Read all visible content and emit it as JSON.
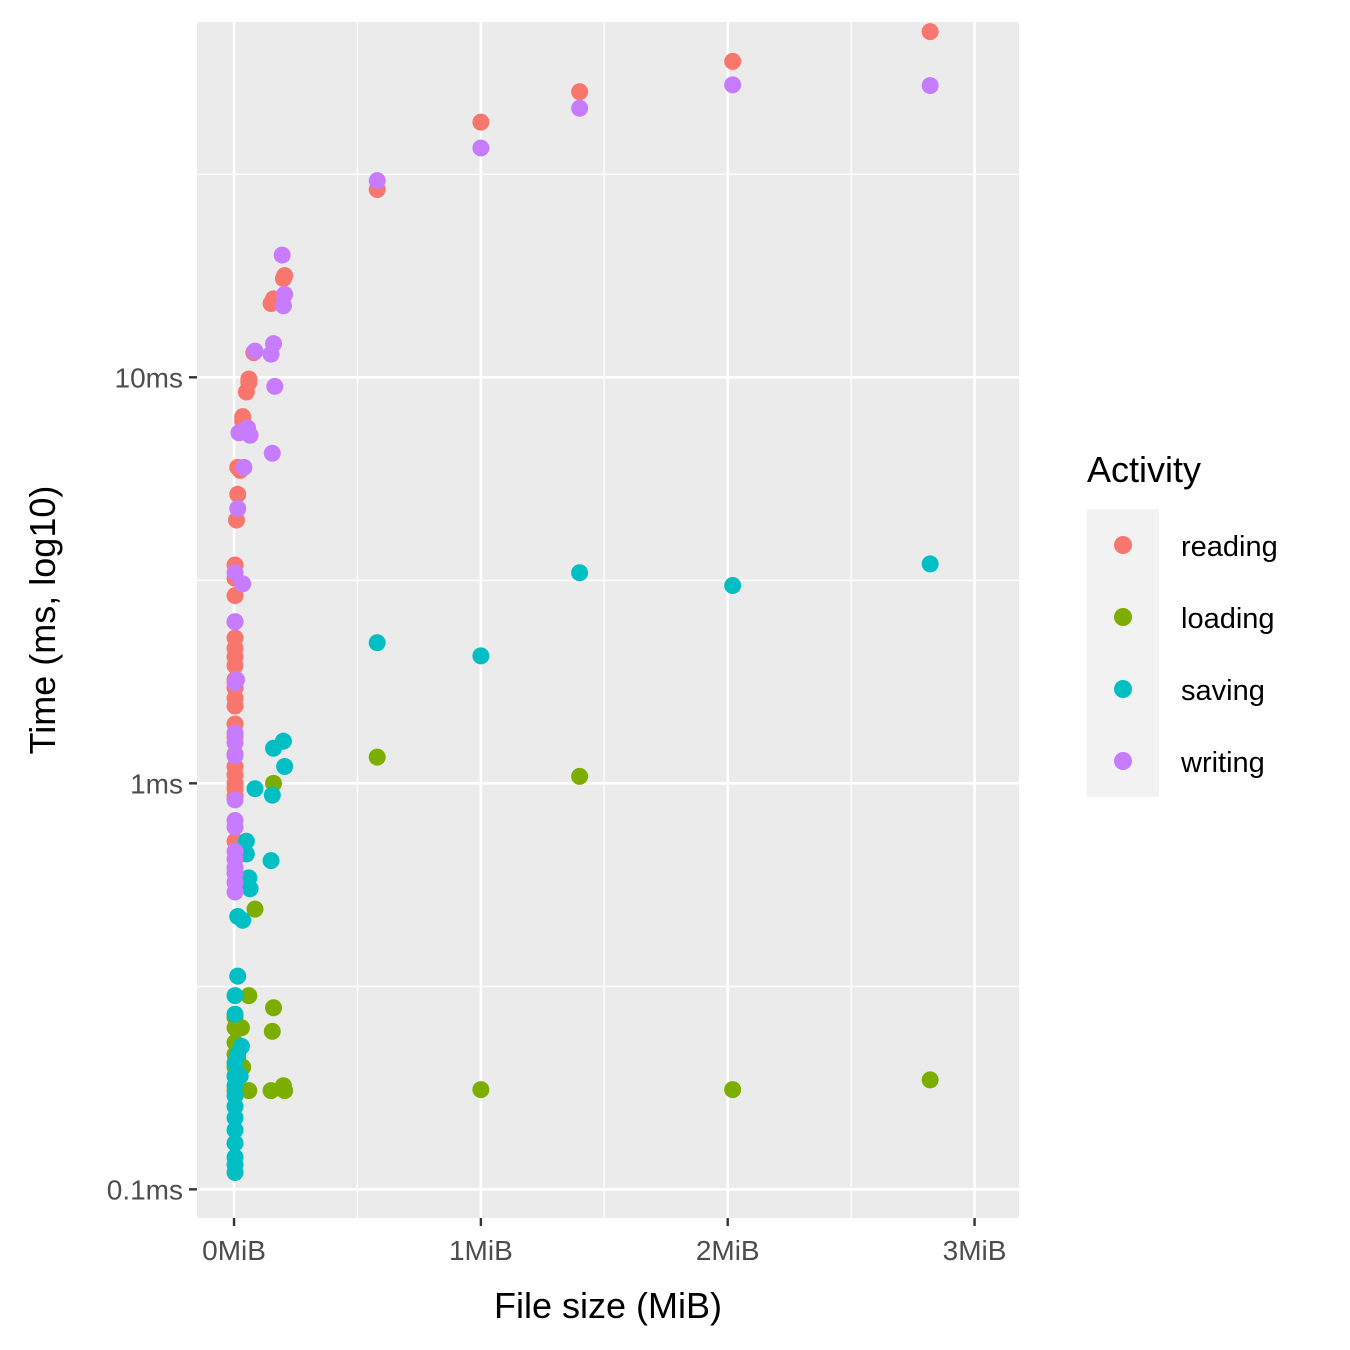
{
  "chart_data": {
    "type": "scatter",
    "xlabel": "File size (MiB)",
    "ylabel": "Time (ms, log10)",
    "x_scale": "linear",
    "y_scale": "log10",
    "xlim": [
      -0.15,
      3.18
    ],
    "ylim": [
      0.085,
      75
    ],
    "x_ticks": [
      {
        "value": 0,
        "label": "0MiB"
      },
      {
        "value": 1,
        "label": "1MiB"
      },
      {
        "value": 2,
        "label": "2MiB"
      },
      {
        "value": 3,
        "label": "3MiB"
      }
    ],
    "y_ticks": [
      {
        "value": 0.1,
        "label": "0.1ms"
      },
      {
        "value": 1,
        "label": "1ms"
      },
      {
        "value": 10,
        "label": "10ms"
      }
    ],
    "x_minor_ticks": [
      0.5,
      1.5,
      2.5
    ],
    "y_minor_ticks": [
      0.316,
      3.16,
      31.6
    ],
    "grid": true,
    "legend": {
      "title": "Activity",
      "position": "right"
    },
    "series": [
      {
        "name": "reading",
        "color": "#F8766D",
        "points": [
          [
            0.004,
            1.0
          ],
          [
            0.004,
            1.05
          ],
          [
            0.004,
            1.1
          ],
          [
            0.004,
            1.18
          ],
          [
            0.004,
            1.3
          ],
          [
            0.004,
            1.4
          ],
          [
            0.004,
            1.55
          ],
          [
            0.004,
            1.62
          ],
          [
            0.004,
            1.72
          ],
          [
            0.004,
            1.8
          ],
          [
            0.004,
            1.95
          ],
          [
            0.004,
            2.05
          ],
          [
            0.004,
            2.15
          ],
          [
            0.004,
            2.28
          ],
          [
            0.004,
            2.5
          ],
          [
            0.004,
            2.9
          ],
          [
            0.004,
            3.2
          ],
          [
            0.004,
            3.45
          ],
          [
            0.004,
            0.97
          ],
          [
            0.004,
            0.93
          ],
          [
            0.004,
            0.72
          ],
          [
            0.01,
            4.45
          ],
          [
            0.015,
            5.15
          ],
          [
            0.015,
            6.0
          ],
          [
            0.025,
            5.9
          ],
          [
            0.035,
            7.8
          ],
          [
            0.035,
            8.0
          ],
          [
            0.05,
            9.2
          ],
          [
            0.06,
            9.9
          ],
          [
            0.06,
            9.7
          ],
          [
            0.08,
            11.5
          ],
          [
            0.15,
            15.2
          ],
          [
            0.16,
            15.6
          ],
          [
            0.165,
            15.5
          ],
          [
            0.2,
            17.5
          ],
          [
            0.205,
            17.8
          ],
          [
            0.58,
            29.0
          ],
          [
            1.0,
            42.5
          ],
          [
            1.4,
            50.5
          ],
          [
            2.02,
            60.0
          ],
          [
            2.82,
            71.0
          ]
        ]
      },
      {
        "name": "loading",
        "color": "#7CAE00",
        "points": [
          [
            0.004,
            0.175
          ],
          [
            0.004,
            0.19
          ],
          [
            0.004,
            0.2
          ],
          [
            0.004,
            0.215
          ],
          [
            0.004,
            0.23
          ],
          [
            0.004,
            0.25
          ],
          [
            0.004,
            0.265
          ],
          [
            0.015,
            0.21
          ],
          [
            0.03,
            0.25
          ],
          [
            0.035,
            0.2
          ],
          [
            0.06,
            0.175
          ],
          [
            0.06,
            0.3
          ],
          [
            0.085,
            0.49
          ],
          [
            0.15,
            0.175
          ],
          [
            0.155,
            0.245
          ],
          [
            0.16,
            0.28
          ],
          [
            0.16,
            1.0
          ],
          [
            0.2,
            0.18
          ],
          [
            0.205,
            0.175
          ],
          [
            0.58,
            1.16
          ],
          [
            1.0,
            0.176
          ],
          [
            1.4,
            1.04
          ],
          [
            2.02,
            0.176
          ],
          [
            2.82,
            0.186
          ]
        ]
      },
      {
        "name": "saving",
        "color": "#00BFC4",
        "points": [
          [
            0.004,
            0.11
          ],
          [
            0.004,
            0.115
          ],
          [
            0.004,
            0.12
          ],
          [
            0.004,
            0.13
          ],
          [
            0.004,
            0.14
          ],
          [
            0.004,
            0.15
          ],
          [
            0.004,
            0.16
          ],
          [
            0.004,
            0.17
          ],
          [
            0.004,
            0.18
          ],
          [
            0.004,
            0.19
          ],
          [
            0.004,
            0.205
          ],
          [
            0.004,
            0.27
          ],
          [
            0.004,
            0.3
          ],
          [
            0.015,
            0.215
          ],
          [
            0.015,
            0.335
          ],
          [
            0.015,
            0.47
          ],
          [
            0.025,
            0.19
          ],
          [
            0.03,
            0.225
          ],
          [
            0.035,
            0.46
          ],
          [
            0.05,
            0.72
          ],
          [
            0.05,
            0.67
          ],
          [
            0.06,
            0.585
          ],
          [
            0.065,
            0.55
          ],
          [
            0.085,
            0.97
          ],
          [
            0.15,
            0.645
          ],
          [
            0.155,
            0.935
          ],
          [
            0.16,
            1.22
          ],
          [
            0.2,
            1.27
          ],
          [
            0.205,
            1.1
          ],
          [
            0.58,
            2.22
          ],
          [
            1.0,
            2.06
          ],
          [
            1.4,
            3.3
          ],
          [
            2.02,
            3.07
          ],
          [
            2.82,
            3.47
          ]
        ]
      },
      {
        "name": "writing",
        "color": "#C77CFF",
        "points": [
          [
            0.004,
            0.54
          ],
          [
            0.004,
            0.57
          ],
          [
            0.004,
            0.6
          ],
          [
            0.004,
            0.62
          ],
          [
            0.004,
            0.65
          ],
          [
            0.004,
            0.68
          ],
          [
            0.004,
            0.78
          ],
          [
            0.004,
            0.81
          ],
          [
            0.004,
            0.91
          ],
          [
            0.004,
            1.17
          ],
          [
            0.004,
            1.26
          ],
          [
            0.004,
            1.33
          ],
          [
            0.004,
            1.77
          ],
          [
            0.004,
            2.5
          ],
          [
            0.004,
            3.3
          ],
          [
            0.01,
            1.8
          ],
          [
            0.015,
            4.75
          ],
          [
            0.02,
            7.3
          ],
          [
            0.035,
            3.1
          ],
          [
            0.04,
            6.0
          ],
          [
            0.055,
            7.5
          ],
          [
            0.065,
            7.2
          ],
          [
            0.085,
            11.6
          ],
          [
            0.15,
            11.4
          ],
          [
            0.155,
            6.5
          ],
          [
            0.16,
            12.1
          ],
          [
            0.165,
            9.5
          ],
          [
            0.2,
            15.0
          ],
          [
            0.205,
            16.0
          ],
          [
            0.195,
            20.0
          ],
          [
            0.58,
            30.5
          ],
          [
            1.0,
            36.7
          ],
          [
            1.4,
            46.0
          ],
          [
            2.02,
            52.5
          ],
          [
            2.82,
            52.3
          ]
        ]
      }
    ]
  }
}
